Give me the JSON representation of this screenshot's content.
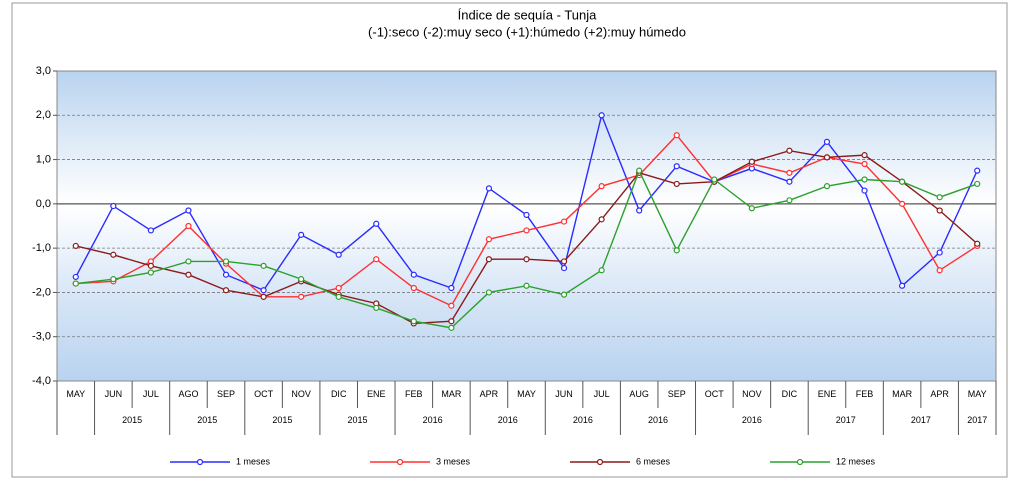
{
  "chart_data": {
    "type": "line",
    "title": "Índice de sequía - Tunja",
    "subtitle": "(-1):seco  (-2):muy seco  (+1):húmedo    (+2):muy húmedo",
    "categories": [
      "MAY",
      "JUN",
      "JUL",
      "AGO",
      "SEP",
      "OCT",
      "NOV",
      "DIC",
      "ENE",
      "FEB",
      "MAR",
      "APR",
      "MAY",
      "JUN",
      "JUL",
      "AUG",
      "SEP",
      "OCT",
      "NOV",
      "DIC",
      "ENE",
      "FEB",
      "MAR",
      "APR",
      "MAY"
    ],
    "year_groups": [
      {
        "label": null,
        "span": 1
      },
      {
        "label": "2015",
        "span": 2
      },
      {
        "label": "2015",
        "span": 2
      },
      {
        "label": "2015",
        "span": 2
      },
      {
        "label": "2015",
        "span": 2
      },
      {
        "label": "2016",
        "span": 2
      },
      {
        "label": "2016",
        "span": 2
      },
      {
        "label": "2016",
        "span": 2
      },
      {
        "label": "2016",
        "span": 2
      },
      {
        "label": "2016",
        "span": 3
      },
      {
        "label": "2017",
        "span": 2
      },
      {
        "label": "2017",
        "span": 2
      },
      {
        "label": "2017",
        "span": 1
      }
    ],
    "series": [
      {
        "name": "1 meses",
        "color": "#2b2bff",
        "values": [
          -1.65,
          -0.05,
          -0.6,
          -0.15,
          -1.6,
          -1.95,
          -0.7,
          -1.15,
          -0.45,
          -1.6,
          -1.9,
          0.35,
          -0.25,
          -1.45,
          2.0,
          -0.15,
          0.85,
          0.5,
          0.8,
          0.5,
          1.4,
          0.3,
          -1.85,
          -1.1,
          0.75
        ]
      },
      {
        "name": "3 meses",
        "color": "#ff3030",
        "values": [
          -1.8,
          -1.75,
          -1.3,
          -0.5,
          -1.35,
          -2.1,
          -2.1,
          -1.9,
          -1.25,
          -1.9,
          -2.3,
          -0.8,
          -0.6,
          -0.4,
          0.4,
          0.65,
          1.55,
          0.5,
          0.9,
          0.7,
          1.05,
          0.9,
          0.0,
          -1.5,
          -0.95
        ]
      },
      {
        "name": "6 meses",
        "color": "#8b1a1a",
        "values": [
          -0.95,
          -1.15,
          -1.4,
          -1.6,
          -1.95,
          -2.1,
          -1.75,
          -2.05,
          -2.25,
          -2.7,
          -2.65,
          -1.25,
          -1.25,
          -1.3,
          -0.35,
          0.7,
          0.45,
          0.5,
          0.95,
          1.2,
          1.05,
          1.1,
          0.5,
          -0.15,
          -0.9
        ]
      },
      {
        "name": "12 meses",
        "color": "#2ca02c",
        "values": [
          -1.8,
          -1.7,
          -1.55,
          -1.3,
          -1.3,
          -1.4,
          -1.7,
          -2.1,
          -2.35,
          -2.65,
          -2.8,
          -2.0,
          -1.85,
          -2.05,
          -1.5,
          0.75,
          -1.05,
          0.55,
          -0.1,
          0.08,
          0.4,
          0.55,
          0.5,
          0.15,
          0.45
        ]
      }
    ],
    "ylim": [
      -4,
      3
    ],
    "yticks": [
      {
        "value": 3,
        "label": "3,0"
      },
      {
        "value": 2,
        "label": "2,0"
      },
      {
        "value": 1,
        "label": "1,0"
      },
      {
        "value": 0,
        "label": "0,0"
      },
      {
        "value": -1,
        "label": "-1,0"
      },
      {
        "value": -2,
        "label": "-2,0"
      },
      {
        "value": -3,
        "label": "-3,0"
      },
      {
        "value": -4,
        "label": "-4,0"
      }
    ],
    "grid": true,
    "legend": "bottom"
  }
}
